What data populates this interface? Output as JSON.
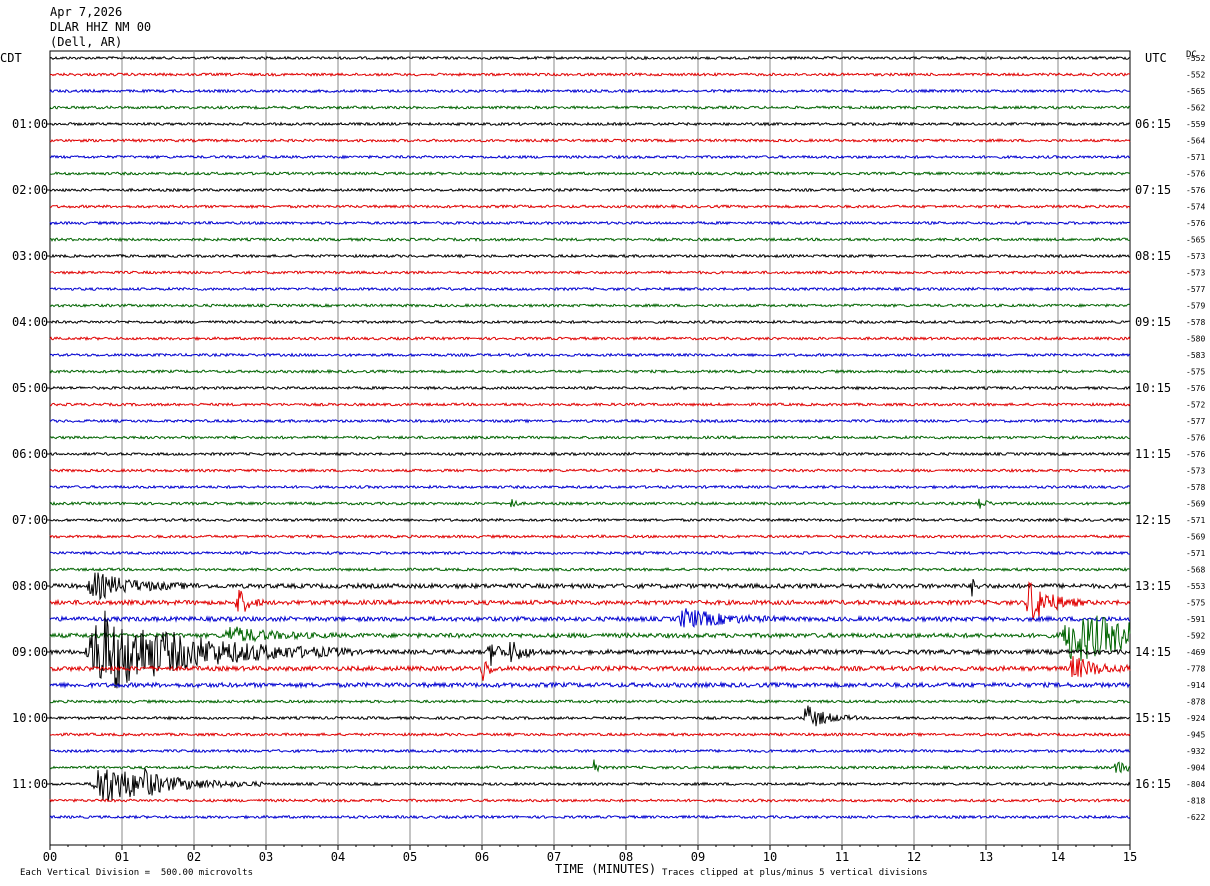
{
  "header": {
    "date": "Apr 7,2026",
    "station": "DLAR HHZ NM 00",
    "location": "(Dell, AR)",
    "left_zone": "CDT",
    "right_zone": "UTC",
    "dc_label": "DC"
  },
  "footer": {
    "xlabel": "TIME (MINUTES)",
    "scale_note": "Each Vertical Division =  500.00 microvolts",
    "clip_note": "Traces clipped at plus/minus 5 vertical divisions"
  },
  "chart_data": {
    "type": "line",
    "title": "DLAR HHZ NM 00 (Dell, AR) Apr 7,2026",
    "xlabel": "TIME (MINUTES)",
    "xlim": [
      0,
      15
    ],
    "x_ticks": [
      "00",
      "01",
      "02",
      "03",
      "04",
      "05",
      "06",
      "07",
      "08",
      "09",
      "10",
      "11",
      "12",
      "13",
      "14",
      "15"
    ],
    "grid": true,
    "trace_colors": [
      "#000000",
      "#e00000",
      "#0000d0",
      "#006400"
    ],
    "left_hour_labels": [
      "01:00",
      "02:00",
      "03:00",
      "04:00",
      "05:00",
      "06:00",
      "07:00",
      "08:00",
      "09:00",
      "10:00",
      "11:00"
    ],
    "right_hour_labels": [
      "06:15",
      "07:15",
      "08:15",
      "09:15",
      "10:15",
      "11:15",
      "12:15",
      "13:15",
      "14:15",
      "15:15",
      "16:15"
    ],
    "dc_offsets": [
      "-552",
      "-552",
      "-565",
      "-562",
      "-559",
      "-564",
      "-571",
      "-576",
      "-576",
      "-574",
      "-576",
      "-565",
      "-573",
      "-573",
      "-577",
      "-579",
      "-578",
      "-580",
      "-583",
      "-575",
      "-576",
      "-572",
      "-577",
      "-576",
      "-576",
      "-573",
      "-578",
      "-569",
      "-571",
      "-569",
      "-571",
      "-568",
      "-553",
      "-575",
      "-591",
      "-592",
      "-469",
      "-778",
      "-914",
      "-878",
      "-924",
      "-945",
      "-932",
      "-904",
      "-804",
      "-818",
      "-622"
    ],
    "events": [
      {
        "trace": 27,
        "minute": 6.4,
        "amplitude": 0.6,
        "duration": 0.05
      },
      {
        "trace": 27,
        "minute": 12.9,
        "amplitude": 0.4,
        "duration": 0.1
      },
      {
        "trace": 32,
        "minute": 0.6,
        "amplitude": 0.8,
        "duration": 0.6
      },
      {
        "trace": 32,
        "minute": 12.8,
        "amplitude": 0.6,
        "duration": 0.06
      },
      {
        "trace": 33,
        "minute": 2.6,
        "amplitude": 1.0,
        "duration": 0.15
      },
      {
        "trace": 33,
        "minute": 13.6,
        "amplitude": 1.5,
        "duration": 0.3
      },
      {
        "trace": 34,
        "minute": 8.8,
        "amplitude": 0.6,
        "duration": 0.6
      },
      {
        "trace": 35,
        "minute": 2.5,
        "amplitude": 0.5,
        "duration": 0.6
      },
      {
        "trace": 35,
        "minute": 14.2,
        "amplitude": 1.6,
        "duration": 1.2
      },
      {
        "trace": 36,
        "minute": 0.7,
        "amplitude": 2.6,
        "duration": 1.4
      },
      {
        "trace": 36,
        "minute": 6.1,
        "amplitude": 0.9,
        "duration": 0.15
      },
      {
        "trace": 36,
        "minute": 6.4,
        "amplitude": 0.7,
        "duration": 0.2
      },
      {
        "trace": 37,
        "minute": 6.0,
        "amplitude": 0.9,
        "duration": 0.1
      },
      {
        "trace": 37,
        "minute": 14.2,
        "amplitude": 0.7,
        "duration": 0.4
      },
      {
        "trace": 40,
        "minute": 10.5,
        "amplitude": 0.8,
        "duration": 0.3
      },
      {
        "trace": 43,
        "minute": 7.55,
        "amplitude": 0.7,
        "duration": 0.05
      },
      {
        "trace": 43,
        "minute": 14.8,
        "amplitude": 0.4,
        "duration": 0.2
      },
      {
        "trace": 44,
        "minute": 0.7,
        "amplitude": 1.3,
        "duration": 0.9
      },
      {
        "trace": 44,
        "minute": 1.3,
        "amplitude": 0.6,
        "duration": 0.1
      }
    ]
  }
}
